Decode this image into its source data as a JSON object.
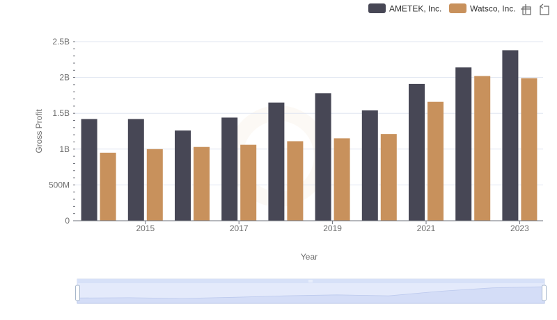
{
  "toolbox": {
    "zoom_icon": "zoom-icon",
    "restore_icon": "restore-icon"
  },
  "chart_data": {
    "type": "bar",
    "xlabel": "Year",
    "ylabel": "Gross Profit",
    "categories": [
      "2014",
      "2015",
      "2016",
      "2017",
      "2018",
      "2019",
      "2020",
      "2021",
      "2022",
      "2023"
    ],
    "x_tick_labels_shown": [
      "2015",
      "2017",
      "2019",
      "2021",
      "2023"
    ],
    "y_ticks": [
      {
        "value": 0,
        "label": "0"
      },
      {
        "value": 500000000,
        "label": "500M"
      },
      {
        "value": 1000000000,
        "label": "1B"
      },
      {
        "value": 1500000000,
        "label": "1.5B"
      },
      {
        "value": 2000000000,
        "label": "2B"
      },
      {
        "value": 2500000000,
        "label": "2.5B"
      }
    ],
    "ylim": [
      0,
      2500000000
    ],
    "grid": true,
    "legend_position": "top-right",
    "series": [
      {
        "name": "AMETEK, Inc.",
        "color": "#474755",
        "values": [
          1420000000,
          1420000000,
          1260000000,
          1440000000,
          1650000000,
          1780000000,
          1540000000,
          1910000000,
          2140000000,
          2380000000
        ]
      },
      {
        "name": "Watsco, Inc.",
        "color": "#c8915c",
        "values": [
          950000000,
          1000000000,
          1030000000,
          1060000000,
          1110000000,
          1150000000,
          1210000000,
          1660000000,
          2020000000,
          1990000000
        ]
      }
    ],
    "data_zoom": {
      "range_percent": [
        0,
        100
      ]
    }
  }
}
